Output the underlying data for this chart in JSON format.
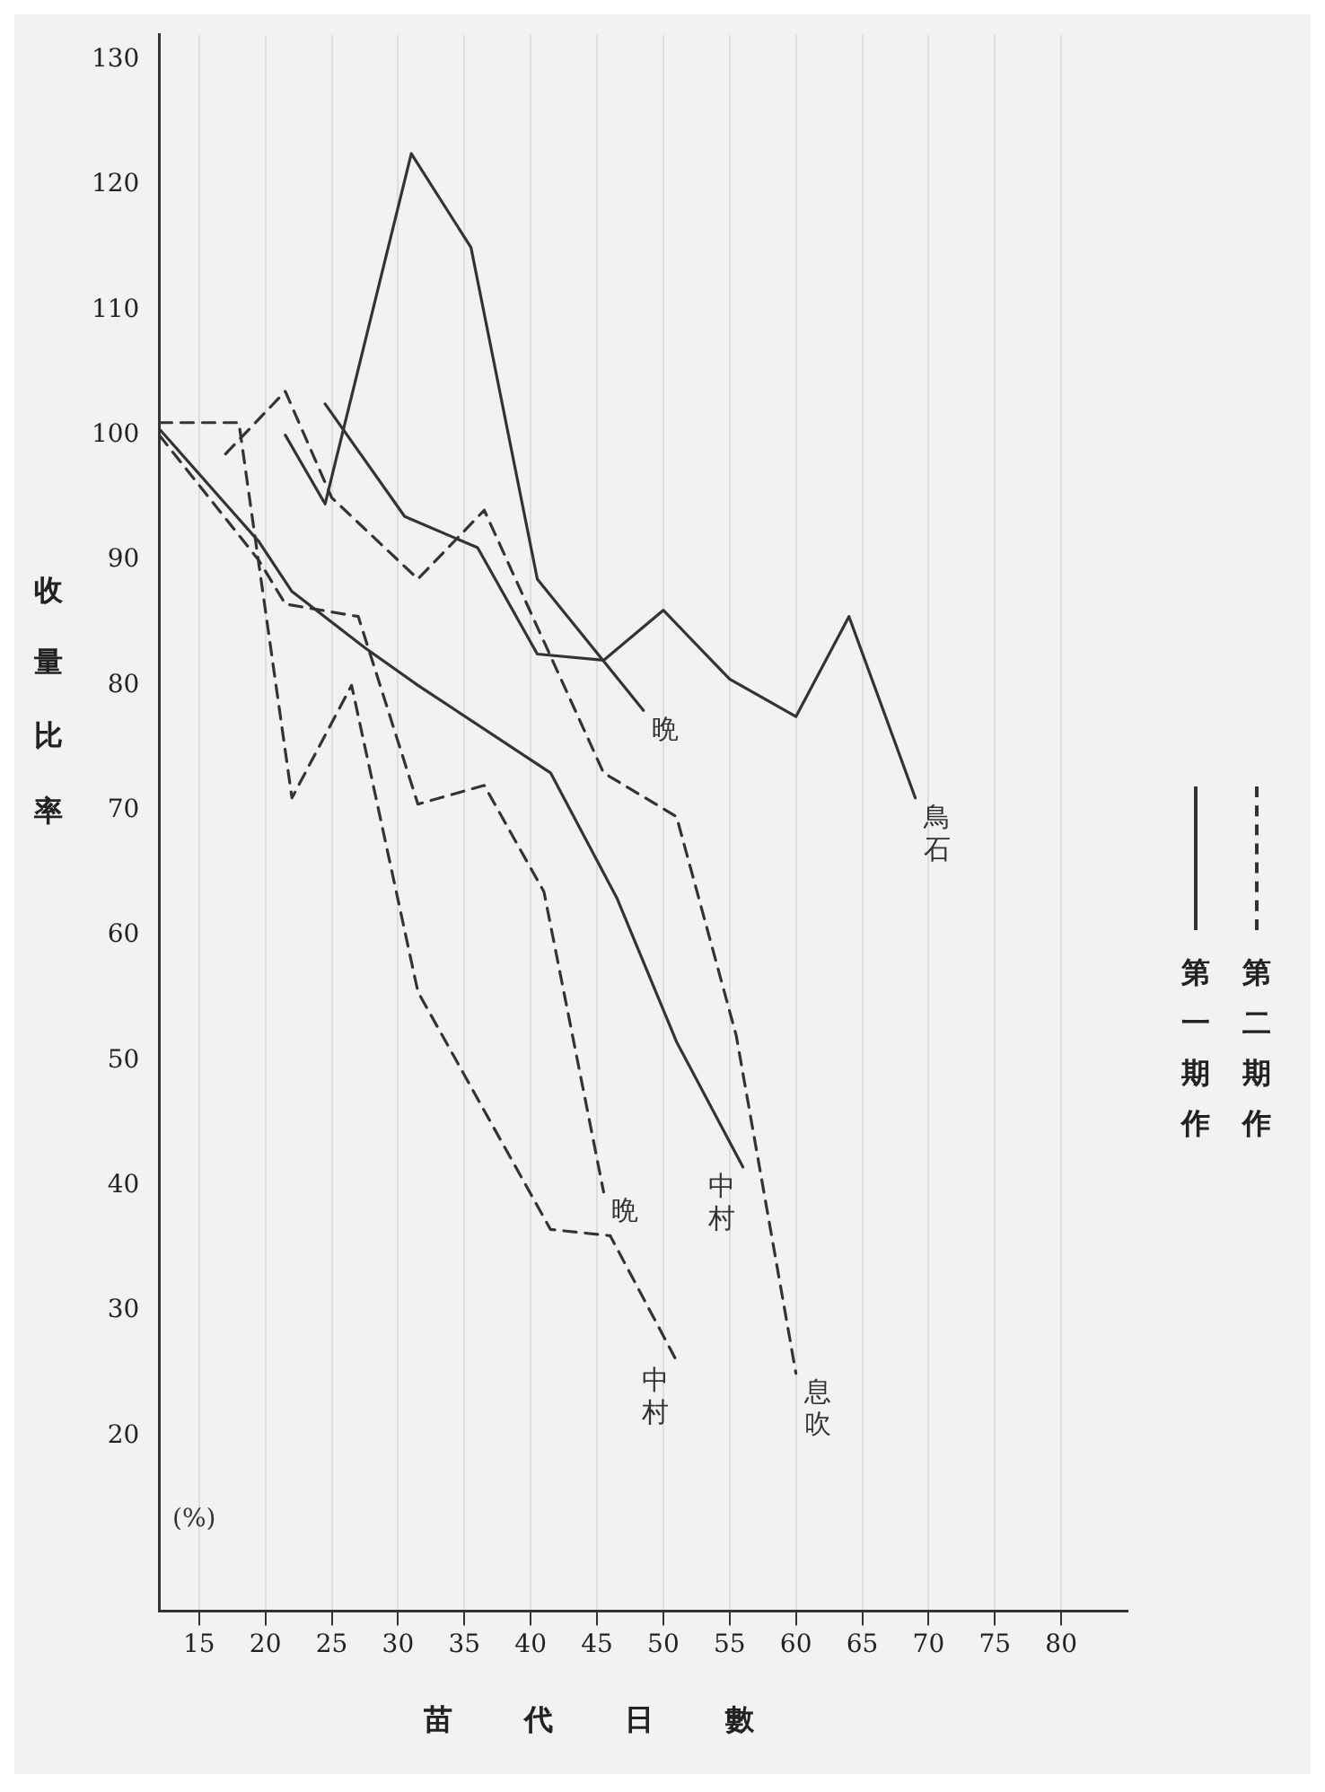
{
  "chart_data": {
    "type": "line",
    "xlabel": "苗代日數",
    "ylabel": "收量比率",
    "annotations": [
      "(%)",
      "第一期作",
      "第二期作"
    ],
    "xlim": [
      12,
      85
    ],
    "xticks": [
      15,
      20,
      25,
      30,
      35,
      40,
      45,
      50,
      55,
      60,
      65,
      70,
      75,
      80
    ],
    "ylim": [
      6,
      132
    ],
    "yticks": [
      20,
      30,
      40,
      50,
      60,
      70,
      80,
      90,
      100,
      110,
      120,
      130
    ],
    "grid": "x",
    "marker": "none",
    "series": [
      {
        "name": "晩",
        "color": "#333333",
        "line_style": "solid",
        "x": [
          21.5,
          24.5,
          31,
          35.5,
          40.5,
          48.5
        ],
        "values": [
          100,
          94.5,
          122.5,
          115,
          88.5,
          78
        ]
      },
      {
        "name": "鳥石",
        "color": "#333333",
        "line_style": "solid",
        "x": [
          24.5,
          30.5,
          36,
          40.5,
          45.5,
          50,
          55,
          60,
          64,
          69
        ],
        "values": [
          102.5,
          93.5,
          91,
          82.5,
          82,
          86,
          80.5,
          77.5,
          85.5,
          71
        ]
      },
      {
        "name": "中村",
        "color": "#333333",
        "line_style": "solid",
        "x": [
          12,
          19.5,
          22,
          27.5,
          31.5,
          41.5,
          46.5,
          51,
          56
        ],
        "values": [
          100.5,
          91.5,
          87.5,
          83,
          80,
          73,
          63,
          51.5,
          41.5
        ]
      },
      {
        "name": "晩",
        "color": "#333333",
        "line_style": "dashed",
        "x": [
          12,
          19.5,
          21.5,
          27,
          31.5,
          36.5,
          41,
          45.5
        ],
        "values": [
          100,
          90,
          86.5,
          85.5,
          70.5,
          72,
          63.5,
          39.5
        ]
      },
      {
        "name": "中村",
        "color": "#333333",
        "line_style": "dashed",
        "x": [
          12,
          18,
          22,
          26.5,
          31.5,
          41.5,
          46,
          51
        ],
        "values": [
          101,
          101,
          71,
          80,
          55.5,
          36.5,
          36,
          26
        ]
      },
      {
        "name": "息吹",
        "color": "#333333",
        "line_style": "dashed",
        "x": [
          17,
          21.5,
          25,
          31.5,
          36.5,
          45.5,
          51,
          55.5,
          60
        ],
        "values": [
          98.5,
          103.5,
          95,
          88.5,
          94,
          73,
          69.5,
          52,
          25
        ]
      }
    ]
  }
}
